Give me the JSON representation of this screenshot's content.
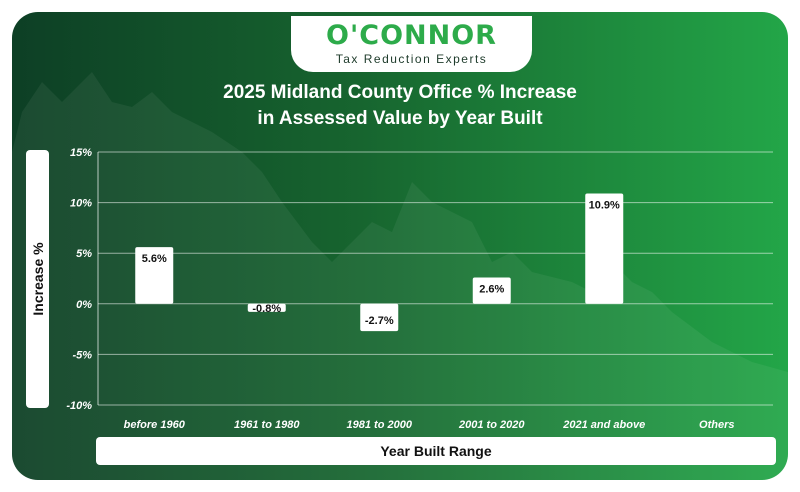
{
  "logo": {
    "name": "O'CONNOR",
    "tagline": "Tax Reduction Experts"
  },
  "colors": {
    "accent": "#2dab4a",
    "background_dark": "#0d3f25",
    "background_light": "#23a648",
    "bar": "#ffffff"
  },
  "chart_data": {
    "type": "bar",
    "title_line1": "2025 Midland County Office % Increase",
    "title_line2": "in Assessed Value by Year Built",
    "xlabel": "Year Built Range",
    "ylabel": "Increase %",
    "categories": [
      "before 1960",
      "1961 to 1980",
      "1981 to 2000",
      "2001 to 2020",
      "2021 and above",
      "Others"
    ],
    "values": [
      5.6,
      -0.8,
      -2.7,
      2.6,
      10.9,
      null
    ],
    "value_labels": [
      "5.6%",
      "-0.8%",
      "-2.7%",
      "2.6%",
      "10.9%",
      ""
    ],
    "yticks": [
      15,
      10,
      5,
      0,
      -5,
      -10
    ],
    "ytick_labels": [
      "15%",
      "10%",
      "5%",
      "0%",
      "-5%",
      "-10%"
    ],
    "ylim": [
      -10,
      15
    ],
    "grid": true,
    "legend": "none"
  }
}
